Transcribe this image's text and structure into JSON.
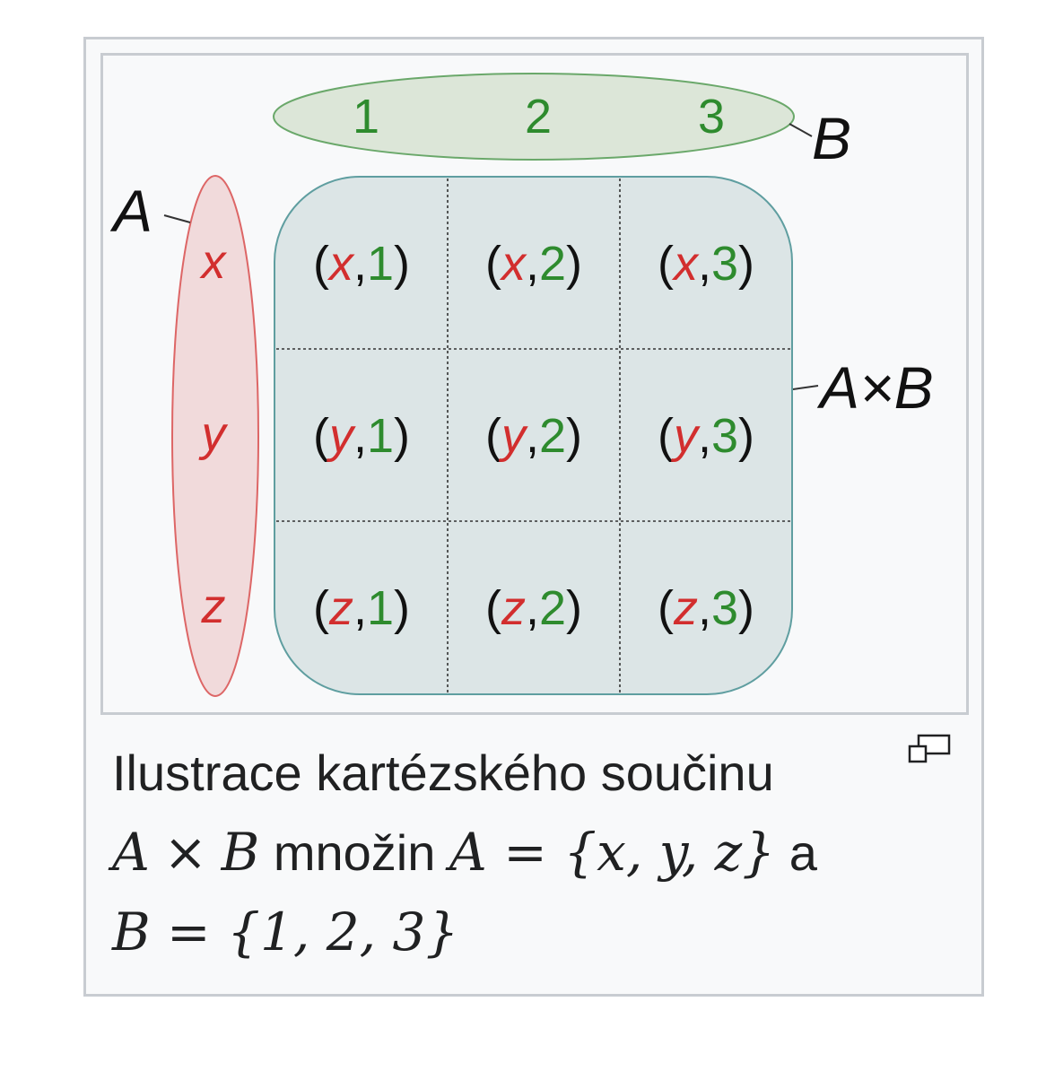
{
  "diagram": {
    "set_a_label": "A",
    "set_b_label": "B",
    "product_label": "A×B",
    "set_a_elements": [
      "x",
      "y",
      "z"
    ],
    "set_b_elements": [
      "1",
      "2",
      "3"
    ],
    "pairs": [
      [
        {
          "a": "x",
          "b": "1"
        },
        {
          "a": "x",
          "b": "2"
        },
        {
          "a": "x",
          "b": "3"
        }
      ],
      [
        {
          "a": "y",
          "b": "1"
        },
        {
          "a": "y",
          "b": "2"
        },
        {
          "a": "y",
          "b": "3"
        }
      ],
      [
        {
          "a": "z",
          "b": "1"
        },
        {
          "a": "z",
          "b": "2"
        },
        {
          "a": "z",
          "b": "3"
        }
      ]
    ],
    "colors": {
      "set_a": "#d22e2e",
      "set_a_fill": "#f1dadb",
      "set_b": "#2e8b2e",
      "set_b_fill": "#dce6d8",
      "product_fill": "#dce5e6",
      "product_stroke": "#5f9ea0"
    }
  },
  "caption": {
    "line1": "Ilustrace kartézského součinu",
    "line2_math_a": "A",
    "line2_times": "×",
    "line2_math_b": "B",
    "line2_text": "množin",
    "line2_set_a": "A = {x, y, z}",
    "line2_and": "a",
    "line3_set_b": "B = {1, 2, 3}"
  },
  "icons": {
    "magnify": "magnify-clip-icon"
  }
}
